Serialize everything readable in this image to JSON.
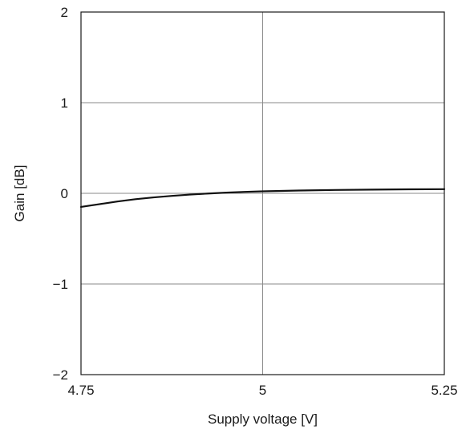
{
  "chart_data": {
    "type": "line",
    "title": "",
    "xlabel": "Supply voltage [V]",
    "ylabel": "Gain [dB]",
    "xlim": [
      4.75,
      5.25
    ],
    "ylim": [
      -2,
      2
    ],
    "x_ticks": [
      4.75,
      5,
      5.25
    ],
    "x_tick_labels": [
      "4.75",
      "5",
      "5.25"
    ],
    "y_ticks": [
      -2,
      -1,
      0,
      1,
      2
    ],
    "y_tick_labels": [
      "−2",
      "−1",
      "0",
      "1",
      "2"
    ],
    "grid": true,
    "series": [
      {
        "color": "#111111",
        "x": [
          4.75,
          4.775,
          4.8,
          4.825,
          4.85,
          4.875,
          4.9,
          4.925,
          4.95,
          4.975,
          5.0,
          5.05,
          5.1,
          5.15,
          5.2,
          5.25
        ],
        "y": [
          -0.15,
          -0.12,
          -0.09,
          -0.065,
          -0.045,
          -0.028,
          -0.014,
          -0.002,
          0.008,
          0.016,
          0.022,
          0.031,
          0.037,
          0.041,
          0.044,
          0.046
        ]
      }
    ]
  }
}
